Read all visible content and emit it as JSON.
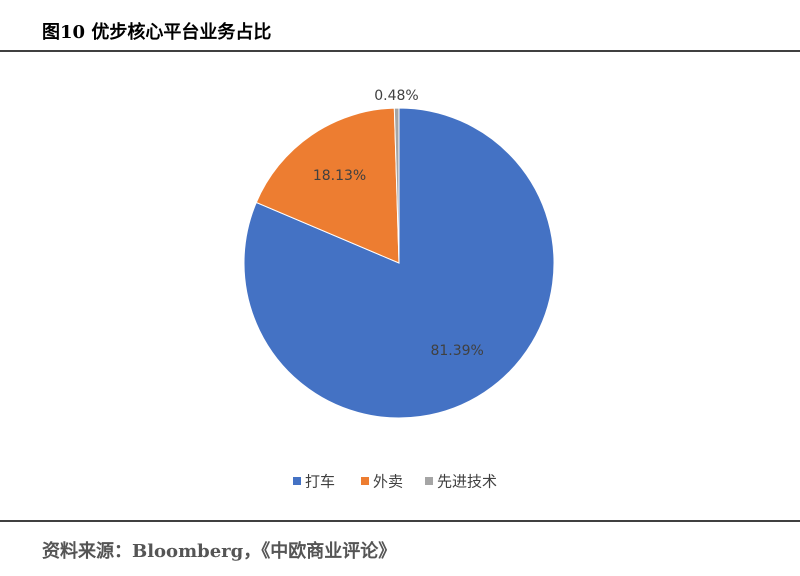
{
  "chart_data": {
    "type": "pie",
    "title": "图10 优步核心平台业务占比",
    "categories": [
      "打车",
      "外卖",
      "先进技术"
    ],
    "values": [
      81.39,
      18.13,
      0.48
    ],
    "value_labels": [
      "81.39%",
      "18.13%",
      "0.48%"
    ],
    "colors": [
      "#4472c4",
      "#ed7d31",
      "#a5a5a5"
    ],
    "legend": "bottom",
    "source": "资料来源：Bloomberg，《中欧商业评论》"
  }
}
